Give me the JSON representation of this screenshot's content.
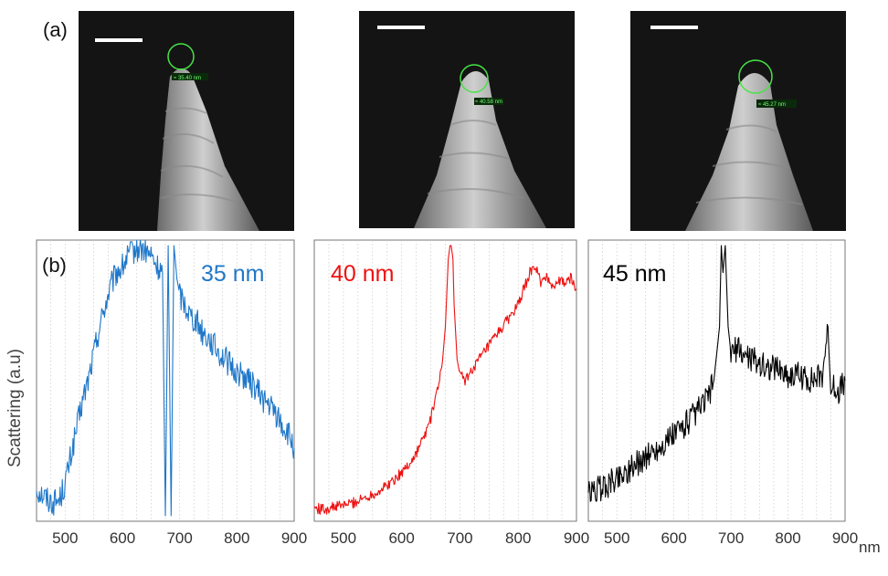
{
  "panel_labels": {
    "a": "(a)",
    "b": "(b)"
  },
  "sem_images": [
    {
      "measure_label": "≈ 35.40 nm"
    },
    {
      "measure_label": "≈ 40.58 nm"
    },
    {
      "measure_label": "≈ 45.27 nm"
    }
  ],
  "y_axis_label": "Scattering (a.u)",
  "x_unit": "nm",
  "colors": {
    "panel1": "#1f77c8",
    "panel2": "#ee1111",
    "panel3": "#000000",
    "circle": "#46e446",
    "grid": "#c8c8c8"
  },
  "chart_data": [
    {
      "type": "line",
      "annotation": "35 nm",
      "color": "#1f77c8",
      "xlim": [
        450,
        900
      ],
      "xticks": [
        500,
        600,
        700,
        800,
        900
      ],
      "ylim": [
        0,
        1
      ],
      "grid": "vertical dotted every 25 nm",
      "x": [
        450,
        460,
        470,
        480,
        490,
        500,
        510,
        520,
        530,
        540,
        550,
        560,
        570,
        580,
        590,
        600,
        610,
        620,
        630,
        640,
        650,
        660,
        670,
        675,
        680,
        685,
        690,
        695,
        700,
        710,
        720,
        730,
        740,
        750,
        760,
        770,
        780,
        790,
        800,
        810,
        820,
        830,
        840,
        850,
        860,
        870,
        880,
        890,
        900
      ],
      "y": [
        0.1,
        0.08,
        0.06,
        0.05,
        0.06,
        0.12,
        0.22,
        0.32,
        0.42,
        0.5,
        0.6,
        0.7,
        0.78,
        0.85,
        0.9,
        0.92,
        0.96,
        0.98,
        0.99,
        0.98,
        0.96,
        0.92,
        0.9,
        0.0,
        1.0,
        0.0,
        1.0,
        0.88,
        0.82,
        0.78,
        0.74,
        0.72,
        0.68,
        0.66,
        0.63,
        0.6,
        0.58,
        0.55,
        0.53,
        0.52,
        0.5,
        0.48,
        0.45,
        0.42,
        0.4,
        0.37,
        0.33,
        0.3,
        0.25
      ],
      "noise": 0.05
    },
    {
      "type": "line",
      "annotation": "40 nm",
      "color": "#ee1111",
      "xlim": [
        450,
        900
      ],
      "xticks": [
        500,
        600,
        700,
        800,
        900
      ],
      "ylim": [
        0,
        1
      ],
      "grid": "vertical dotted every 25 nm",
      "x": [
        450,
        460,
        470,
        480,
        500,
        520,
        540,
        560,
        580,
        600,
        620,
        640,
        650,
        660,
        670,
        675,
        680,
        683,
        685,
        688,
        690,
        695,
        700,
        710,
        720,
        740,
        760,
        780,
        800,
        820,
        830,
        840,
        850,
        860,
        870,
        880,
        890,
        900
      ],
      "y": [
        0.03,
        0.025,
        0.025,
        0.03,
        0.04,
        0.05,
        0.07,
        0.09,
        0.12,
        0.16,
        0.21,
        0.3,
        0.36,
        0.45,
        0.57,
        0.7,
        0.95,
        1.0,
        1.0,
        0.95,
        0.78,
        0.58,
        0.52,
        0.5,
        0.54,
        0.6,
        0.66,
        0.72,
        0.78,
        0.9,
        0.92,
        0.86,
        0.88,
        0.85,
        0.87,
        0.86,
        0.88,
        0.84
      ],
      "noise": 0.02
    },
    {
      "type": "line",
      "annotation": "45 nm",
      "color": "#000000",
      "xlim": [
        450,
        900
      ],
      "xticks": [
        500,
        600,
        700,
        800,
        900
      ],
      "ylim": [
        0,
        1
      ],
      "grid": "vertical dotted every 25 nm",
      "x": [
        450,
        460,
        480,
        500,
        520,
        540,
        560,
        580,
        600,
        620,
        640,
        660,
        670,
        675,
        680,
        683,
        686,
        690,
        695,
        700,
        710,
        720,
        740,
        760,
        780,
        800,
        820,
        840,
        860,
        870,
        875,
        880,
        890,
        900
      ],
      "y": [
        0.08,
        0.09,
        0.11,
        0.14,
        0.17,
        0.2,
        0.23,
        0.26,
        0.3,
        0.34,
        0.38,
        0.44,
        0.5,
        0.6,
        0.7,
        1.0,
        0.9,
        1.0,
        0.7,
        0.6,
        0.62,
        0.6,
        0.58,
        0.55,
        0.55,
        0.52,
        0.52,
        0.5,
        0.52,
        0.7,
        0.45,
        0.48,
        0.46,
        0.5
      ],
      "noise": 0.05
    }
  ]
}
